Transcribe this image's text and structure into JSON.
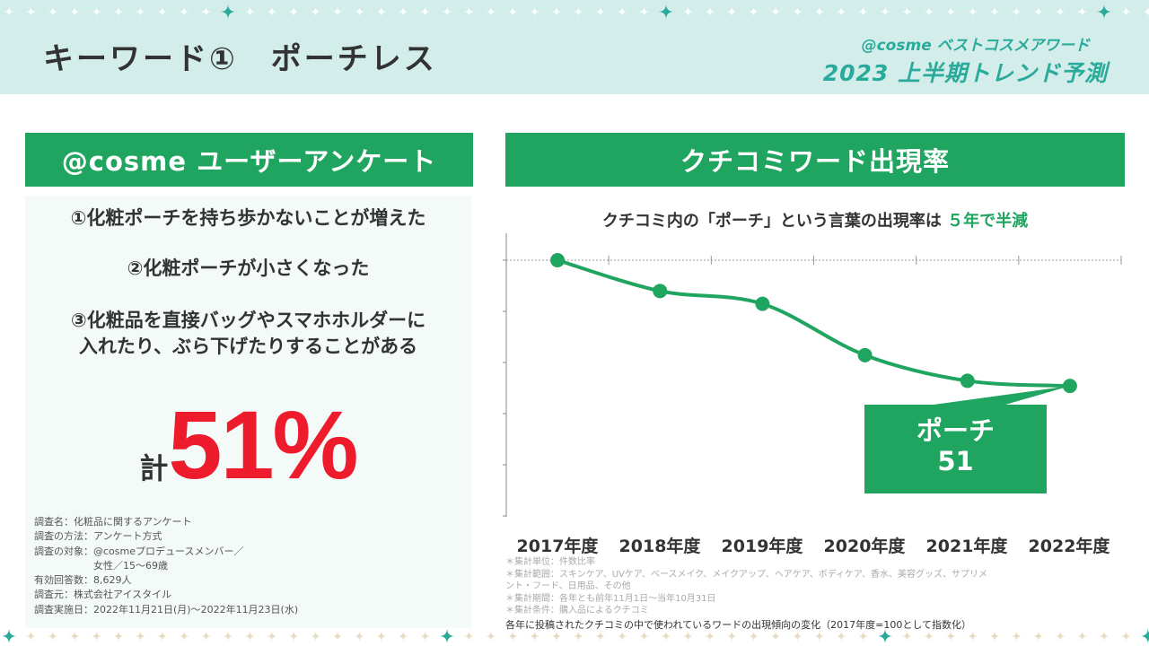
{
  "header": {
    "title": "キーワード①　ポーチレス",
    "brand_top": "@cosme ベストコスメアワード",
    "brand_bottom": "2023 上半期トレンド予測"
  },
  "left_panel": {
    "heading": "@cosme ユーザーアンケート",
    "items": [
      "①化粧ポーチを持ち歩かないことが増えた",
      "②化粧ポーチが小さくなった",
      "③化粧品を直接バッグやスマホホルダーに",
      "入れたり、ぶら下げたりすることがある"
    ],
    "total_prefix": "計",
    "total_value": "51%",
    "info": [
      "調査名：化粧品に関するアンケート",
      "調査の方法：アンケート方式",
      "調査の対象：@cosmeプロデュースメンバー／",
      "　　　　　　女性／15〜69歳",
      "有効回答数：8,629人",
      "調査元：株式会社アイスタイル",
      "調査実施日：2022年11月21日(月)〜2022年11月23日(水)"
    ]
  },
  "right_panel": {
    "heading": "クチコミワード出現率",
    "caption_prefix": "クチコミ内の「ポーチ」という言葉の出現率は",
    "caption_highlight": "５年で半減",
    "callout_label": "ポーチ",
    "callout_value": "51",
    "notes": [
      "＊集計単位：件数比率",
      "＊集計範囲：スキンケア、UVケア、ベースメイク、メイクアップ、ヘアケア、ボディケア、香水、美容グッズ、サプリメ",
      "ント・フード、日用品、その他",
      "＊集計期間：各年とも前年11月1日〜当年10月31日",
      "＊集計条件：購入品によるクチコミ"
    ],
    "footnote": "各年に投稿されたクチコミの中で使われているワードの出現傾向の変化（2017年度=100として指数化）"
  },
  "chart_data": {
    "type": "line",
    "title": "クチコミ内の「ポーチ」という言葉の出現率は５年で半減",
    "categories": [
      "2017年度",
      "2018年度",
      "2019年度",
      "2020年度",
      "2021年度",
      "2022年度"
    ],
    "series": [
      {
        "name": "ポーチ",
        "values": [
          100,
          88,
          83,
          63,
          53,
          51
        ]
      }
    ],
    "ylim": [
      0,
      100
    ],
    "xlabel": "",
    "ylabel": "",
    "color": "#1fa55f"
  },
  "colors": {
    "accent": "#1fa55f",
    "header_bg": "#d3eeea",
    "brand": "#2aaa9a",
    "highlight_red": "#ee1b2c"
  }
}
